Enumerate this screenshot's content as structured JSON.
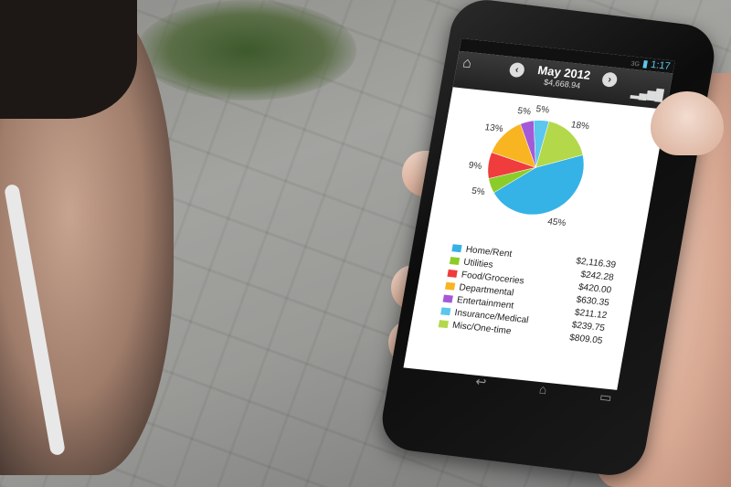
{
  "status": {
    "time": "1:17",
    "network": "3G"
  },
  "header": {
    "title": "May 2012",
    "total": "$4,668.94",
    "home_icon": "home-icon",
    "prev_icon": "chevron-left-icon",
    "next_icon": "chevron-right-icon",
    "chart_icon": "bar-chart-icon"
  },
  "chart_data": {
    "type": "pie",
    "categories": [
      "Home/Rent",
      "Utilities",
      "Food/Groceries",
      "Departmental",
      "Entertainment",
      "Insurance/Medical",
      "Misc/One-time"
    ],
    "values": [
      2116.39,
      242.28,
      420.0,
      630.35,
      211.12,
      239.75,
      809.05
    ],
    "amounts": [
      "$2,116.39",
      "$242.28",
      "$420.00",
      "$630.35",
      "$211.12",
      "$239.75",
      "$809.05"
    ],
    "percent_labels": [
      "45%",
      "5%",
      "9%",
      "13%",
      "5%",
      "5%",
      "18%"
    ],
    "colors": [
      "#35b2e6",
      "#8ccc2a",
      "#f03c3c",
      "#f9b421",
      "#a45ad6",
      "#5bc6ee",
      "#b3d84a"
    ],
    "legend": "below"
  },
  "navbar": {
    "back_icon": "back-icon",
    "home_icon": "home-icon",
    "recents_icon": "recents-icon"
  }
}
